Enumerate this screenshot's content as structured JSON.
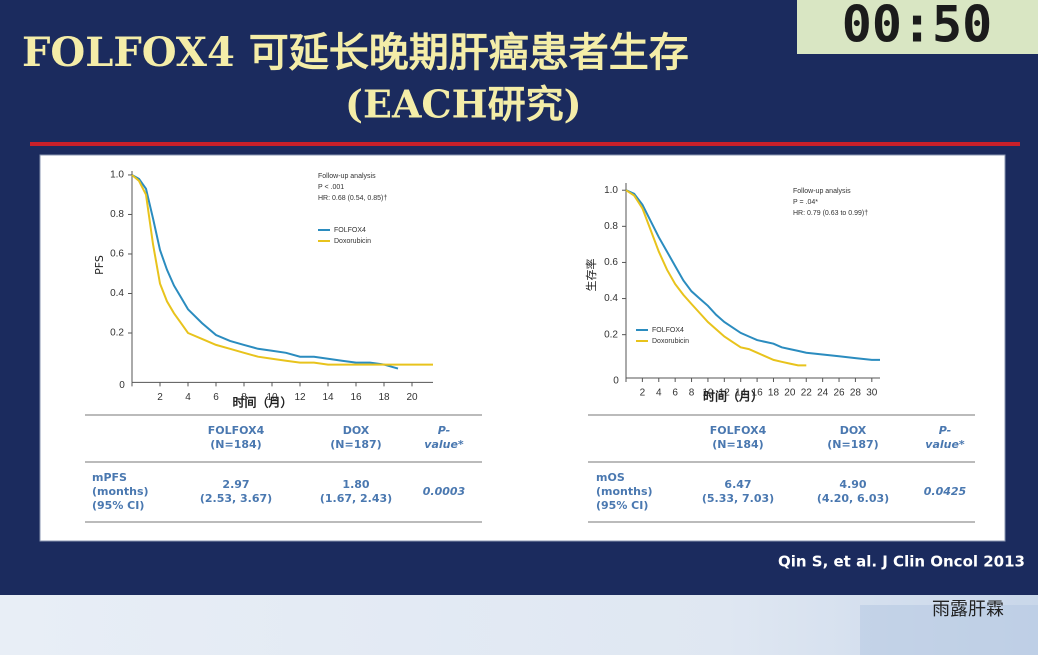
{
  "header": {
    "title_lines": [
      "FOLFOX4  可延长晚期肝癌患者生存",
      "(EACH研究)"
    ],
    "timer": "00:50"
  },
  "chart_data": [
    {
      "type": "line",
      "xlabel": "时间（月）",
      "ylabel": "PFS",
      "annotations": [
        "Follow-up analysis",
        "P < .001",
        "HR: 0.68 (0.54, 0.85)†"
      ],
      "x": [
        0,
        0.5,
        1,
        1.5,
        2,
        2.5,
        3,
        3.5,
        4,
        5,
        6,
        7,
        8,
        9,
        10,
        11,
        12,
        13,
        14,
        15,
        16,
        17,
        18,
        19,
        20,
        21.5
      ],
      "series": [
        {
          "name": "FOLFOX4",
          "color": "#2b8cbf",
          "values": [
            1,
            0.98,
            0.93,
            0.78,
            0.62,
            0.52,
            0.44,
            0.38,
            0.32,
            0.25,
            0.19,
            0.16,
            0.14,
            0.12,
            0.11,
            0.1,
            0.08,
            0.08,
            0.07,
            0.06,
            0.05,
            0.05,
            0.04,
            0.02,
            null,
            null
          ]
        },
        {
          "name": "Doxorubicin",
          "color": "#e8c31c",
          "values": [
            1,
            0.97,
            0.9,
            0.65,
            0.45,
            0.36,
            0.3,
            0.25,
            0.2,
            0.17,
            0.14,
            0.12,
            0.1,
            0.08,
            0.07,
            0.06,
            0.05,
            0.05,
            0.04,
            0.04,
            0.04,
            0.04,
            0.04,
            0.04,
            0.04,
            0.04
          ]
        }
      ],
      "xlim": [
        0,
        21.5
      ],
      "xticks": [
        0,
        2,
        4,
        6,
        8,
        10,
        12,
        14,
        16,
        18,
        20
      ],
      "ylim": [
        -0.05,
        1.02
      ],
      "yticks": [
        0.2,
        0.4,
        0.6,
        0.8,
        {
          "value": 1,
          "label": "1.0"
        }
      ]
    },
    {
      "type": "line",
      "xlabel": "时间（月）",
      "ylabel": "生存率",
      "annotations": [
        "Follow-up analysis",
        "P = .04*",
        "HR: 0.79 (0.63 to 0.99)†"
      ],
      "x": [
        0,
        1,
        2,
        3,
        4,
        5,
        6,
        7,
        8,
        9,
        10,
        11,
        12,
        13,
        14,
        15,
        16,
        17,
        18,
        19,
        20,
        21,
        22,
        24,
        26,
        28,
        30,
        31
      ],
      "series": [
        {
          "name": "FOLFOX4",
          "color": "#2b8cbf",
          "values": [
            1,
            0.98,
            0.92,
            0.83,
            0.74,
            0.66,
            0.58,
            0.5,
            0.44,
            0.4,
            0.36,
            0.31,
            0.27,
            0.24,
            0.21,
            0.19,
            0.17,
            0.16,
            0.15,
            0.13,
            0.12,
            0.11,
            0.1,
            0.09,
            0.08,
            0.07,
            0.06,
            0.06
          ]
        },
        {
          "name": "Doxorubicin",
          "color": "#e8c31c",
          "values": [
            1,
            0.97,
            0.9,
            0.78,
            0.66,
            0.56,
            0.48,
            0.42,
            0.37,
            0.32,
            0.27,
            0.23,
            0.19,
            0.16,
            0.13,
            0.12,
            0.1,
            0.08,
            0.06,
            0.05,
            0.04,
            0.03,
            0.03,
            null,
            null,
            null,
            null,
            null
          ]
        }
      ],
      "xlim": [
        0,
        31
      ],
      "xticks": [
        0,
        2,
        4,
        6,
        8,
        10,
        12,
        14,
        16,
        18,
        20,
        22,
        24,
        26,
        28,
        30
      ],
      "ylim": [
        -0.04,
        1.04
      ],
      "yticks": [
        0.2,
        0.4,
        0.6,
        0.8,
        {
          "value": 1,
          "label": "1.0"
        }
      ]
    }
  ],
  "tables": [
    {
      "headers": [
        [
          "FOLFOX4",
          "(N=184)"
        ],
        [
          "DOX",
          "(N=187)"
        ],
        [
          "P-",
          "value*"
        ]
      ],
      "row": [
        [
          "mPFS",
          "(months)",
          "(95% CI)"
        ],
        [
          "2.97",
          "(2.53, 3.67)"
        ],
        [
          "1.80",
          "(1.67, 2.43)"
        ],
        [
          "0.0003"
        ]
      ]
    },
    {
      "headers": [
        [
          "FOLFOX4",
          "(N=184)"
        ],
        [
          "DOX",
          "(N=187)"
        ],
        [
          "P-",
          "value*"
        ]
      ],
      "row": [
        [
          "mOS",
          "(months)",
          "(95% CI)"
        ],
        [
          "6.47",
          "(5.33, 7.03)"
        ],
        [
          "4.90",
          "(4.20, 6.03)"
        ],
        [
          "0.0425"
        ]
      ]
    }
  ],
  "citation": "Qin S, et al. J Clin Oncol 2013",
  "watermark": "雨露肝霖"
}
